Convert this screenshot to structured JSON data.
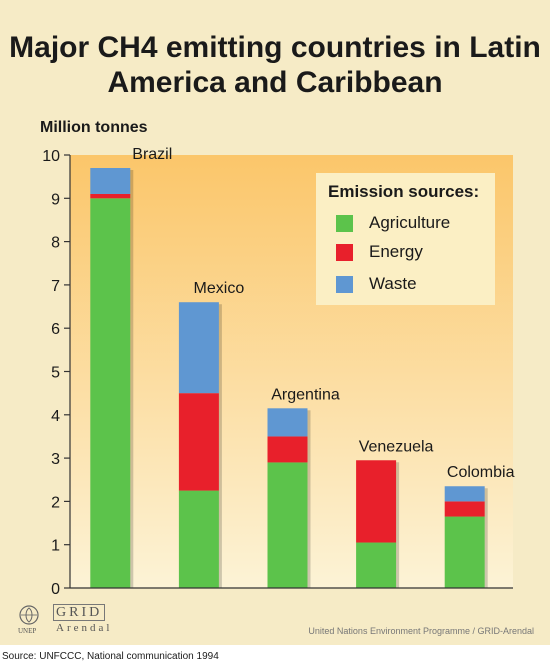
{
  "chart_data": {
    "type": "bar",
    "stacked": true,
    "title": "Major CH4 emitting countries in Latin America and Caribbean",
    "ylabel": "Million tonnes",
    "ylim": [
      0,
      10
    ],
    "yticks": [
      "0",
      "1",
      "2",
      "3",
      "4",
      "5",
      "6",
      "7",
      "8",
      "9",
      "10"
    ],
    "categories": [
      "Brazil",
      "Mexico",
      "Argentina",
      "Venezuela",
      "Colombia"
    ],
    "series": [
      {
        "name": "Agriculture",
        "color": "#5cc34b",
        "values": [
          9.0,
          2.25,
          2.9,
          1.05,
          1.65
        ]
      },
      {
        "name": "Energy",
        "color": "#e8202b",
        "values": [
          0.1,
          2.25,
          0.6,
          1.9,
          0.35
        ]
      },
      {
        "name": "Waste",
        "color": "#5f97d2",
        "values": [
          0.6,
          2.1,
          0.65,
          0.0,
          0.35
        ]
      }
    ],
    "legend_title": "Emission sources:",
    "legend_position": "top-right",
    "grid": false
  },
  "footer": {
    "logo_unep": "UNEP",
    "logo_grid": "GRID",
    "logo_arendal": "Arendal",
    "credit": "United Nations Environment Programme / GRID-Arendal",
    "source": "Source: UNFCCC, National communication 1994"
  }
}
